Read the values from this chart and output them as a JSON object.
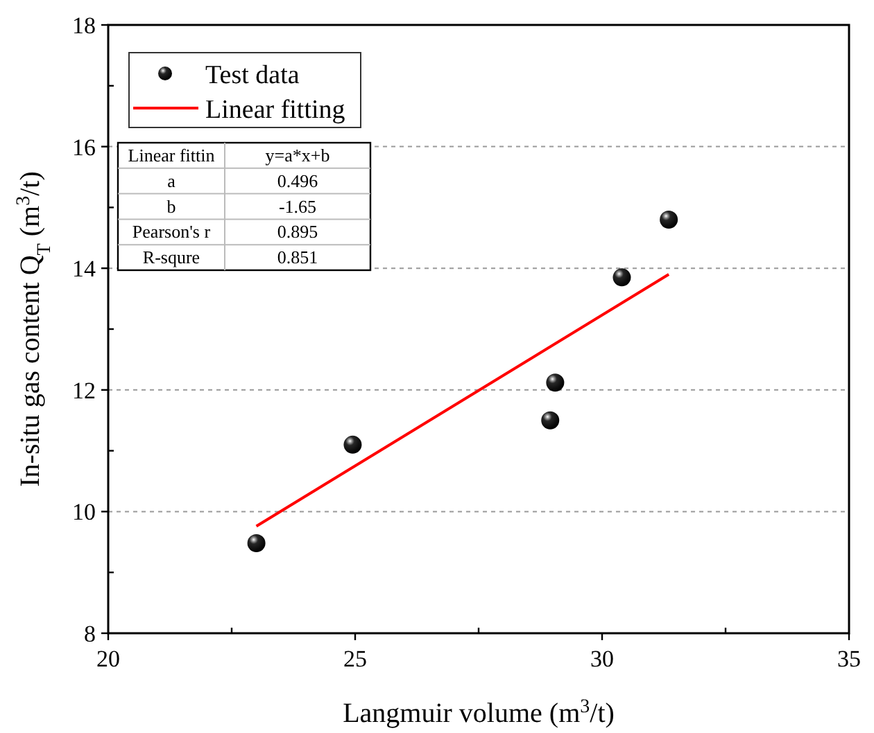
{
  "chart_data": {
    "type": "scatter",
    "xlabel": "Langmuir volume (m$^{3}$/t)",
    "ylabel": "In-situ gas content Q$_{T}$ (m$^{3}$/t)",
    "xlim": [
      20,
      35
    ],
    "xticks": [
      20,
      {
        "value": 22.5,
        "label": null
      },
      25,
      {
        "value": 27.5,
        "label": null
      },
      30,
      {
        "value": 32.5,
        "label": null
      },
      35
    ],
    "ylim": [
      8,
      18
    ],
    "yticks": [
      8,
      {
        "value": 9,
        "label": null
      },
      10,
      {
        "value": 11,
        "label": null
      },
      12,
      {
        "value": 13,
        "label": null
      },
      14,
      {
        "value": 15,
        "label": null
      },
      16,
      {
        "value": 17,
        "label": null
      },
      18
    ],
    "grid": "y",
    "legend": "top left",
    "series": [
      {
        "name": "Test data",
        "marker": "circle",
        "color": "#000000",
        "x": [
          23.0,
          24.95,
          28.95,
          29.05,
          30.4,
          31.35
        ],
        "values": [
          9.48,
          11.1,
          11.5,
          12.12,
          13.85,
          14.8
        ]
      },
      {
        "name": "Linear fitting",
        "type": "line",
        "color": "#ff0000",
        "line_style": "solid",
        "marker": "none",
        "x": [
          23.0,
          31.35
        ],
        "values": [
          9.76,
          13.9
        ]
      }
    ],
    "annotations": [
      "Linear fittin",
      "y=a*x+b",
      "a",
      "0.496",
      "b",
      "-1.65",
      "Pearson's r",
      "0.895",
      "R-squre",
      "0.851"
    ]
  }
}
